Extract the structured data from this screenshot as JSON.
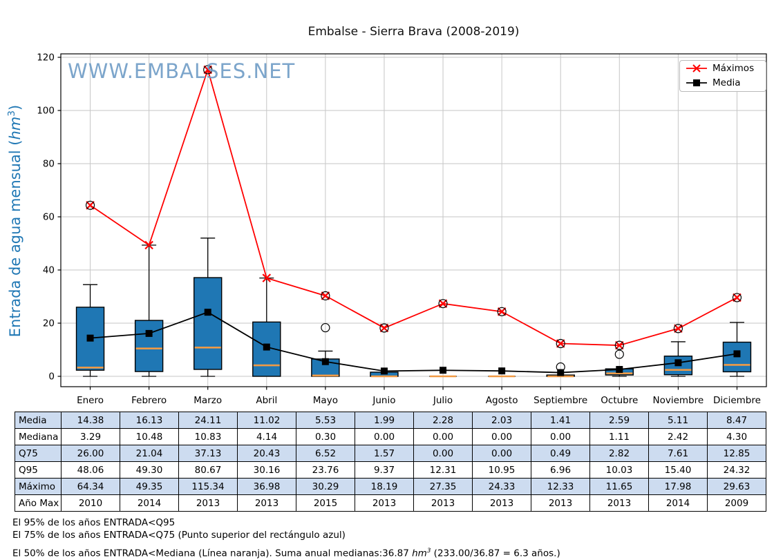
{
  "title": "Embalse - Sierra Brava (2008-2019)",
  "watermark": "WWW.EMBALSES.NET",
  "ylabel": {
    "pre": "Entrada de agua mensual (",
    "unit": "hm",
    "sup": "3",
    "post": ")"
  },
  "legend": [
    {
      "label": "Máximos",
      "color": "#ff0000",
      "marker": "x"
    },
    {
      "label": "Media",
      "color": "#000000",
      "marker": "square"
    }
  ],
  "chart_data": {
    "type": "boxplot-with-lines",
    "categories": [
      "Enero",
      "Febrero",
      "Marzo",
      "Abril",
      "Mayo",
      "Junio",
      "Julio",
      "Agosto",
      "Septiembre",
      "Octubre",
      "Noviembre",
      "Diciembre"
    ],
    "ylim": [
      0,
      120
    ],
    "yticks": [
      0,
      20,
      40,
      60,
      80,
      100,
      120
    ],
    "grid": true,
    "legend_position": "top-right",
    "series": [
      {
        "name": "Máximos",
        "type": "line",
        "marker": "x",
        "color": "#ff0000",
        "values": [
          64.34,
          49.35,
          115.34,
          36.98,
          30.29,
          18.19,
          27.35,
          24.33,
          12.33,
          11.65,
          17.98,
          29.63
        ]
      },
      {
        "name": "Media",
        "type": "line",
        "marker": "square",
        "color": "#000000",
        "values": [
          14.38,
          16.13,
          24.11,
          11.02,
          5.53,
          1.99,
          2.28,
          2.03,
          1.41,
          2.59,
          5.11,
          8.47
        ]
      }
    ],
    "boxplot": {
      "median": [
        3.29,
        10.48,
        10.83,
        4.14,
        0.3,
        0.0,
        0.0,
        0.0,
        0.0,
        1.11,
        2.42,
        4.3
      ],
      "q25_estimated": [
        2.3,
        1.8,
        2.6,
        0.0,
        0.0,
        0.0,
        0.0,
        0.0,
        0.0,
        0.5,
        0.6,
        1.7
      ],
      "q75": [
        26.0,
        21.04,
        37.13,
        20.43,
        6.52,
        1.57,
        0.0,
        0.0,
        0.49,
        2.82,
        7.61,
        12.85
      ],
      "whisker_low": [
        0,
        0,
        0,
        0,
        0,
        0,
        0,
        0,
        0,
        0,
        0,
        0
      ],
      "whisker_high_estimated": [
        34.5,
        49.35,
        52.0,
        36.98,
        9.5,
        1.57,
        0.0,
        0.0,
        0.49,
        2.82,
        13.0,
        20.3
      ],
      "outliers": [
        [
          64.34
        ],
        [],
        [
          115.34
        ],
        [],
        [
          18.3,
          30.29
        ],
        [
          18.19
        ],
        [
          27.35
        ],
        [
          24.33
        ],
        [
          3.5,
          12.33
        ],
        [
          8.3,
          11.65
        ],
        [
          17.98
        ],
        [
          29.63
        ]
      ]
    }
  },
  "table": {
    "row_labels": [
      "Media",
      "Mediana",
      "Q75",
      "Q95",
      "Máximo",
      "Año Max"
    ],
    "shaded_rows": [
      0,
      2,
      4
    ],
    "rows": [
      [
        "14.38",
        "16.13",
        "24.11",
        "11.02",
        "5.53",
        "1.99",
        "2.28",
        "2.03",
        "1.41",
        "2.59",
        "5.11",
        "8.47"
      ],
      [
        "3.29",
        "10.48",
        "10.83",
        "4.14",
        "0.30",
        "0.00",
        "0.00",
        "0.00",
        "0.00",
        "1.11",
        "2.42",
        "4.30"
      ],
      [
        "26.00",
        "21.04",
        "37.13",
        "20.43",
        "6.52",
        "1.57",
        "0.00",
        "0.00",
        "0.49",
        "2.82",
        "7.61",
        "12.85"
      ],
      [
        "48.06",
        "49.30",
        "80.67",
        "30.16",
        "23.76",
        "9.37",
        "12.31",
        "10.95",
        "6.96",
        "10.03",
        "15.40",
        "24.32"
      ],
      [
        "64.34",
        "49.35",
        "115.34",
        "36.98",
        "30.29",
        "18.19",
        "27.35",
        "24.33",
        "12.33",
        "11.65",
        "17.98",
        "29.63"
      ],
      [
        "2010",
        "2014",
        "2013",
        "2013",
        "2015",
        "2013",
        "2013",
        "2013",
        "2013",
        "2013",
        "2014",
        "2009"
      ]
    ]
  },
  "footnotes": {
    "note1": "El 95% de los años ENTRADA<Q95",
    "note2": "El 75% de los años ENTRADA<Q75 (Punto superior del rectángulo azul)",
    "note3_pre": "El 50% de los años ENTRADA<Mediana (Línea naranja). Suma anual medianas:36.87 ",
    "note3_unit": "hm",
    "note3_sup": "3",
    "note3_post": " (233.00/36.87 = 6.3 años.)"
  },
  "colors": {
    "box_fill": "#1f77b4",
    "median_line": "#f09a45",
    "max_line": "#ff0000",
    "mean_line": "#000000",
    "grid": "#c6c6c6",
    "frame": "#000000",
    "watermark": "#6e9cc6",
    "ylabel": "#1f77b4",
    "table_shade": "#cddcf0"
  }
}
